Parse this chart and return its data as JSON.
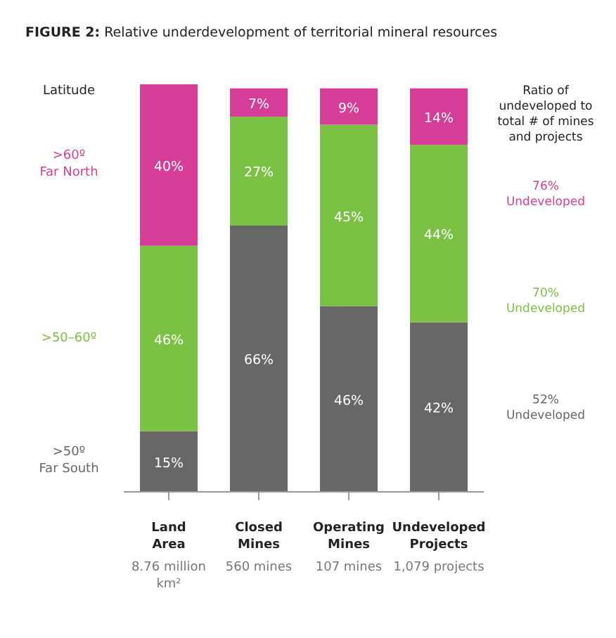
{
  "chart_data": {
    "type": "bar",
    "stacked": true,
    "title": "FIGURE 2: Relative underdevelopment of territorial mineral resources",
    "legend_title": "Latitude",
    "categories": [
      "Land Area\n8.76 million km²",
      "Closed Mines\n560 mines",
      "Operating Mines\n107 mines",
      "Undeveloped Projects\n1,079 projects"
    ],
    "series": [
      {
        "name": ">50º\nFar South",
        "color": "#676767",
        "values": [
          15,
          66,
          46,
          42
        ],
        "value_labels": [
          "15%",
          "66%",
          "46%",
          "42%"
        ]
      },
      {
        "name": ">50–60º",
        "color": "#7bc143",
        "values": [
          46,
          27,
          45,
          44
        ],
        "value_labels": [
          "46%",
          "27%",
          "45%",
          "44%"
        ]
      },
      {
        "name": ">60º\nFar North",
        "color": "#d63d96",
        "values": [
          40,
          7,
          9,
          14
        ],
        "value_labels": [
          "40%",
          "7%",
          "9%",
          "14%"
        ]
      }
    ],
    "annotations": [
      "Ratio of undeveloped to total # of mines and projects",
      "76%\nUndeveloped",
      "70%\nUndeveloped",
      "52%\nUndeveloped"
    ]
  }
}
